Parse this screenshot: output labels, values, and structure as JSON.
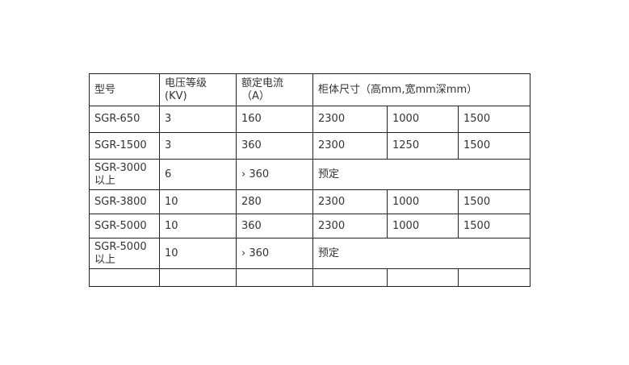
{
  "header": {
    "model": "型号",
    "voltage_line1": "电压等级",
    "voltage_line2": "(KV)",
    "current_line1": "额定电流",
    "current_line2": "（A）",
    "dimensions": "柜体尺寸（高mm,宽mm深mm）"
  },
  "rows": [
    {
      "model": "SGR-650",
      "voltage": "3",
      "current": "160",
      "height": "2300",
      "width": "1000",
      "depth": "1500"
    },
    {
      "model": "SGR-1500",
      "voltage": "3",
      "current": "360",
      "height": "2300",
      "width": "1250",
      "depth": "1500"
    },
    {
      "model_line1": "SGR-3000",
      "model_line2": "以上",
      "voltage": "6",
      "current": "› 360",
      "note": "预定"
    },
    {
      "model": "SGR-3800",
      "voltage": "10",
      "current": "280",
      "height": "2300",
      "width": "1000",
      "depth": "1500"
    },
    {
      "model": "SGR-5000",
      "voltage": "10",
      "current": "360",
      "height": "2300",
      "width": "1000",
      "depth": "1500"
    },
    {
      "model_line1": "SGR-5000",
      "model_line2": "以上",
      "voltage": "10",
      "current": "› 360",
      "note": "预定"
    }
  ]
}
